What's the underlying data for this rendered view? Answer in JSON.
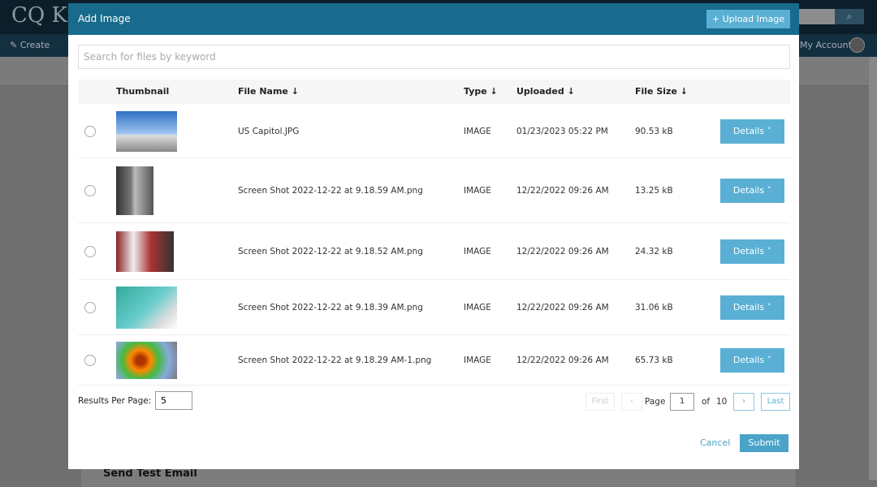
{
  "background": {
    "logo": "CQ Kn",
    "nav_create": "Create",
    "nav_account": "My Account",
    "card_title": "Send Test Email"
  },
  "modal": {
    "title": "Add Image",
    "upload_label": "+ Upload Image",
    "search_placeholder": "Search for files by keyword",
    "columns": {
      "thumbnail": "Thumbnail",
      "file_name": "File Name ↓",
      "type": "Type ↓",
      "uploaded": "Uploaded ↓",
      "file_size": "File Size ↓"
    },
    "rows": [
      {
        "name": "US Capitol.JPG",
        "type": "IMAGE",
        "uploaded": "01/23/2023 05:22 PM",
        "size": "90.53 kB",
        "details": "Details ˅"
      },
      {
        "name": "Screen Shot 2022-12-22 at 9.18.59 AM.png",
        "type": "IMAGE",
        "uploaded": "12/22/2022 09:26 AM",
        "size": "13.25 kB",
        "details": "Details ˅"
      },
      {
        "name": "Screen Shot 2022-12-22 at 9.18.52 AM.png",
        "type": "IMAGE",
        "uploaded": "12/22/2022 09:26 AM",
        "size": "24.32 kB",
        "details": "Details ˅"
      },
      {
        "name": "Screen Shot 2022-12-22 at 9.18.39 AM.png",
        "type": "IMAGE",
        "uploaded": "12/22/2022 09:26 AM",
        "size": "31.06 kB",
        "details": "Details ˅"
      },
      {
        "name": "Screen Shot 2022-12-22 at 9.18.29 AM-1.png",
        "type": "IMAGE",
        "uploaded": "12/22/2022 09:26 AM",
        "size": "65.73 kB",
        "details": "Details ˅"
      }
    ],
    "results_per_page_label": "Results Per Page:",
    "results_per_page": "5",
    "pagination": {
      "first": "First",
      "prev": "‹",
      "page_label": "Page",
      "page": "1",
      "of_label": "of",
      "total": "10",
      "next": "›",
      "last": "Last"
    },
    "cancel": "Cancel",
    "submit": "Submit"
  }
}
